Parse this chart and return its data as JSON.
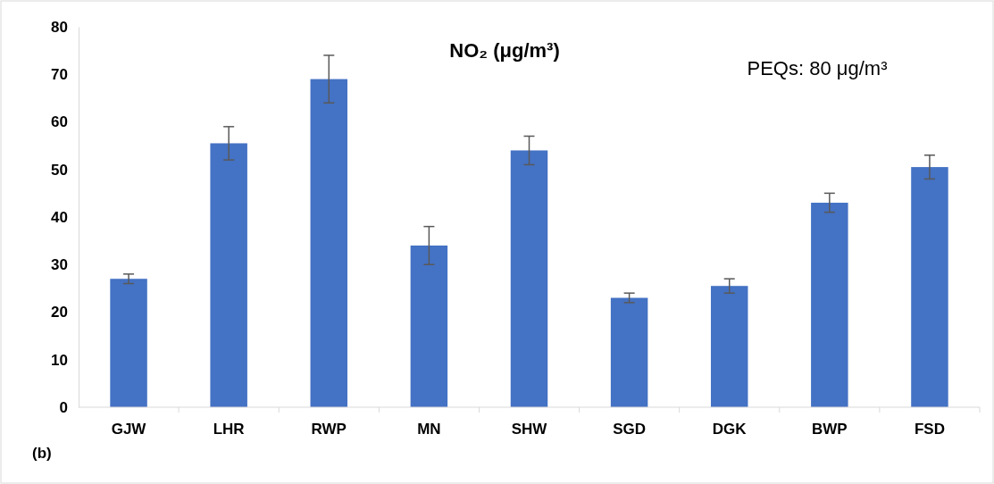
{
  "chart_data": {
    "type": "bar",
    "title": "NO₂ (μg/m³)",
    "annotations": [
      "PEQs: 80 μg/m³",
      "(b)"
    ],
    "categories": [
      "GJW",
      "LHR",
      "RWP",
      "MN",
      "SHW",
      "SGD",
      "DGK",
      "BWP",
      "FSD"
    ],
    "values": [
      27,
      55.5,
      69,
      34,
      54,
      23,
      25.5,
      43,
      50.5
    ],
    "errors": [
      1,
      3.5,
      5,
      4,
      3,
      1,
      1.5,
      2,
      2.5
    ],
    "color": "#4472c4",
    "ylim": [
      0,
      80
    ],
    "yticks": [
      0,
      10,
      20,
      30,
      40,
      50,
      60,
      70,
      80
    ],
    "grid": false
  }
}
